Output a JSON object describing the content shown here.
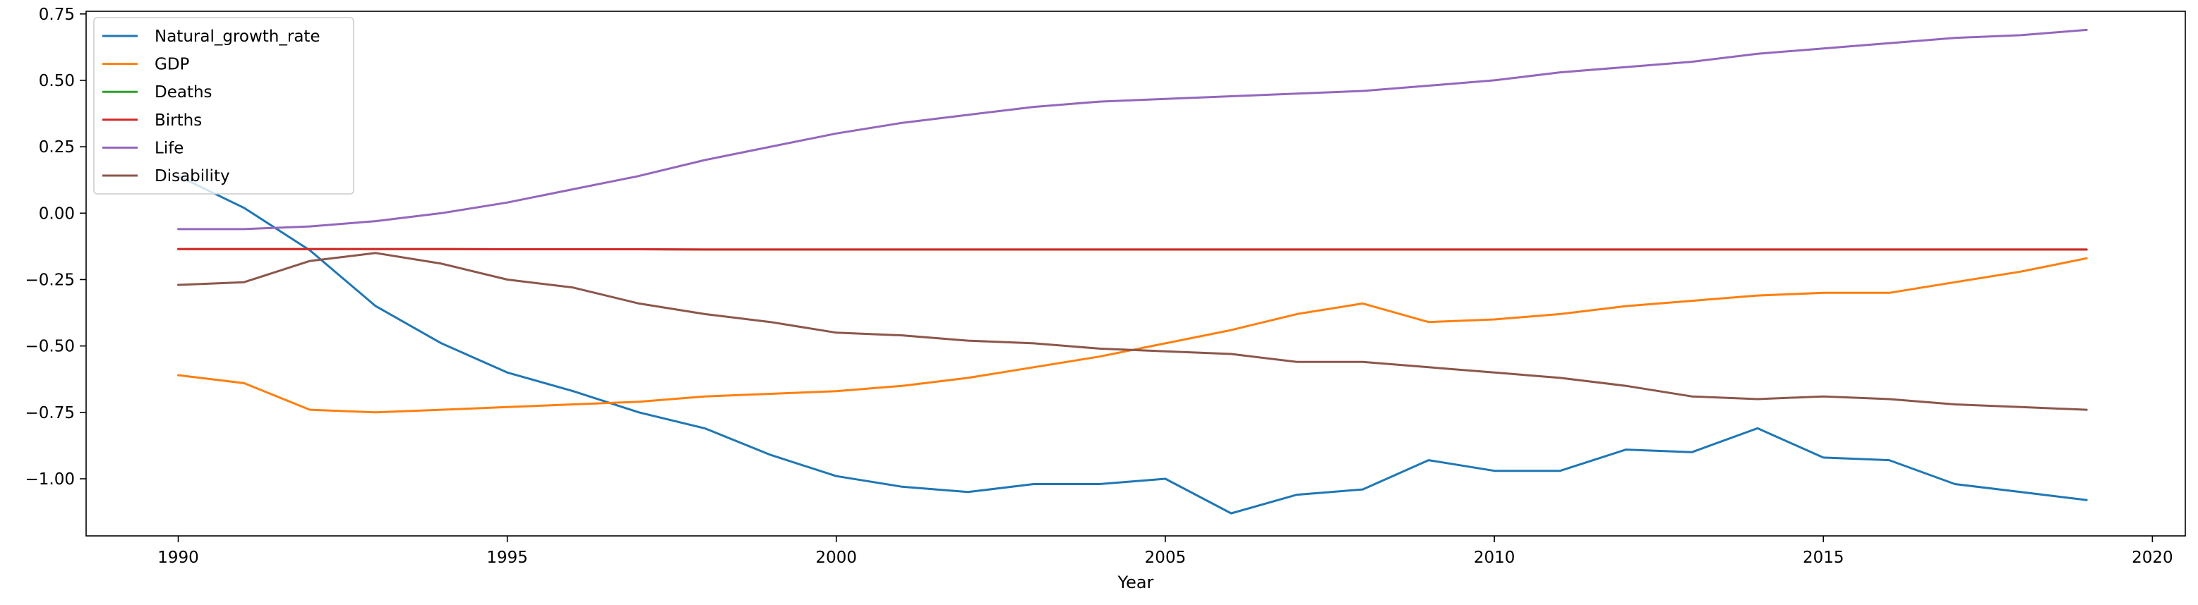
{
  "chart_data": {
    "type": "line",
    "title": "",
    "xlabel": "Year",
    "ylabel": "",
    "xlim": [
      1988.6,
      2020.5
    ],
    "ylim": [
      -1.215,
      0.76
    ],
    "xticks": [
      1990,
      1995,
      2000,
      2005,
      2010,
      2015,
      2020
    ],
    "xtick_labels": [
      "1990",
      "1995",
      "2000",
      "2005",
      "2010",
      "2015",
      "2020"
    ],
    "yticks": [
      0.75,
      0.5,
      0.25,
      0.0,
      -0.25,
      -0.5,
      -0.75,
      -1.0
    ],
    "ytick_labels": [
      "0.75",
      "0.50",
      "0.25",
      "0.00",
      "−0.25",
      "−0.50",
      "−0.75",
      "−1.00"
    ],
    "grid": false,
    "legend_position": "top-left",
    "x": [
      1990,
      1991,
      1992,
      1993,
      1994,
      1995,
      1996,
      1997,
      1998,
      1999,
      2000,
      2001,
      2002,
      2003,
      2004,
      2005,
      2006,
      2007,
      2008,
      2009,
      2010,
      2011,
      2012,
      2013,
      2014,
      2015,
      2016,
      2017,
      2018,
      2019
    ],
    "series": [
      {
        "name": "Natural_growth_rate",
        "color": "#1f77b4",
        "values": [
          0.14,
          0.02,
          -0.14,
          -0.35,
          -0.49,
          -0.6,
          -0.67,
          -0.75,
          -0.81,
          -0.91,
          -0.99,
          -1.03,
          -1.05,
          -1.02,
          -1.02,
          -1.0,
          -1.13,
          -1.06,
          -1.04,
          -0.93,
          -0.97,
          -0.97,
          -0.89,
          -0.9,
          -0.81,
          -0.92,
          -0.93,
          -1.02,
          -1.05,
          -1.08
        ]
      },
      {
        "name": "GDP",
        "color": "#ff7f0e",
        "values": [
          -0.61,
          -0.64,
          -0.74,
          -0.75,
          -0.74,
          -0.73,
          -0.72,
          -0.71,
          -0.69,
          -0.68,
          -0.67,
          -0.65,
          -0.62,
          -0.58,
          -0.54,
          -0.49,
          -0.44,
          -0.38,
          -0.34,
          -0.41,
          -0.4,
          -0.38,
          -0.35,
          -0.33,
          -0.31,
          -0.3,
          -0.3,
          -0.26,
          -0.22,
          -0.17
        ]
      },
      {
        "name": "Deaths",
        "color": "#2ca02c",
        "values": [
          -0.135,
          -0.135,
          -0.135,
          -0.135,
          -0.135,
          -0.136,
          -0.136,
          -0.136,
          -0.137,
          -0.137,
          -0.137,
          -0.137,
          -0.137,
          -0.137,
          -0.137,
          -0.137,
          -0.137,
          -0.137,
          -0.137,
          -0.137,
          -0.137,
          -0.137,
          -0.137,
          -0.137,
          -0.137,
          -0.137,
          -0.137,
          -0.137,
          -0.137,
          -0.137
        ]
      },
      {
        "name": "Births",
        "color": "#d62728",
        "values": [
          -0.135,
          -0.135,
          -0.135,
          -0.135,
          -0.135,
          -0.136,
          -0.136,
          -0.136,
          -0.137,
          -0.137,
          -0.137,
          -0.137,
          -0.137,
          -0.137,
          -0.137,
          -0.137,
          -0.137,
          -0.137,
          -0.137,
          -0.137,
          -0.137,
          -0.137,
          -0.137,
          -0.137,
          -0.137,
          -0.137,
          -0.137,
          -0.137,
          -0.137,
          -0.137
        ]
      },
      {
        "name": "Life",
        "color": "#9467bd",
        "values": [
          -0.06,
          -0.06,
          -0.05,
          -0.03,
          0.0,
          0.04,
          0.09,
          0.14,
          0.2,
          0.25,
          0.3,
          0.34,
          0.37,
          0.4,
          0.42,
          0.43,
          0.44,
          0.45,
          0.46,
          0.48,
          0.5,
          0.53,
          0.55,
          0.57,
          0.6,
          0.62,
          0.64,
          0.66,
          0.67,
          0.69
        ]
      },
      {
        "name": "Disability",
        "color": "#8c564b",
        "values": [
          -0.27,
          -0.26,
          -0.18,
          -0.15,
          -0.19,
          -0.25,
          -0.28,
          -0.34,
          -0.38,
          -0.41,
          -0.45,
          -0.46,
          -0.48,
          -0.49,
          -0.51,
          -0.52,
          -0.53,
          -0.56,
          -0.56,
          -0.58,
          -0.6,
          -0.62,
          -0.65,
          -0.69,
          -0.7,
          -0.69,
          -0.7,
          -0.72,
          -0.73,
          -0.74
        ]
      }
    ]
  }
}
